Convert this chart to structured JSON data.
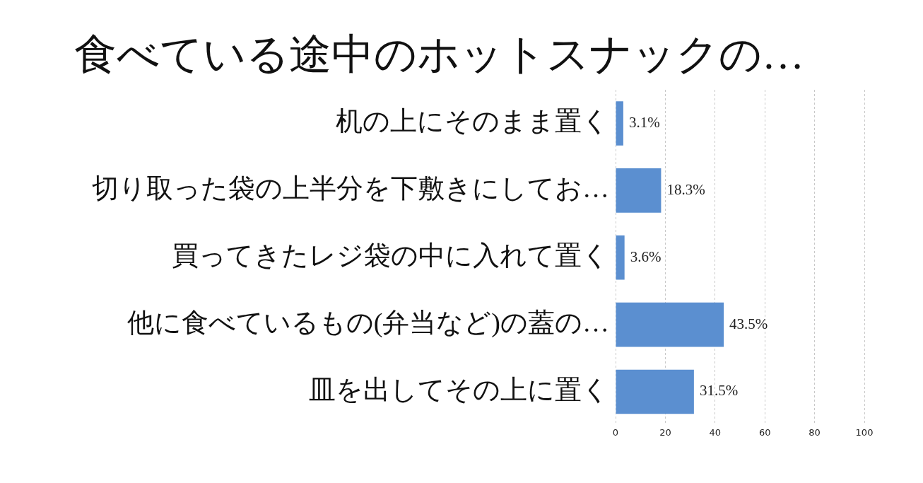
{
  "chart_data": {
    "type": "bar",
    "orientation": "horizontal",
    "title": "食べている途中のホットスナックの…",
    "categories": [
      "机の上にそのまま置く",
      "切り取った袋の上半分を下敷きにしてお…",
      "買ってきたレジ袋の中に入れて置く",
      "他に食べているもの(弁当など)の蓋の…",
      "皿を出してその上に置く"
    ],
    "values": [
      3.1,
      18.3,
      3.6,
      43.5,
      31.5
    ],
    "value_labels": [
      "3.1%",
      "18.3%",
      "3.6%",
      "43.5%",
      "31.5%"
    ],
    "color": "#5b8fd0",
    "xlim": [
      0,
      100
    ],
    "xticks": [
      0,
      20,
      40,
      60,
      80,
      100
    ],
    "grid": "x",
    "legend": false
  }
}
